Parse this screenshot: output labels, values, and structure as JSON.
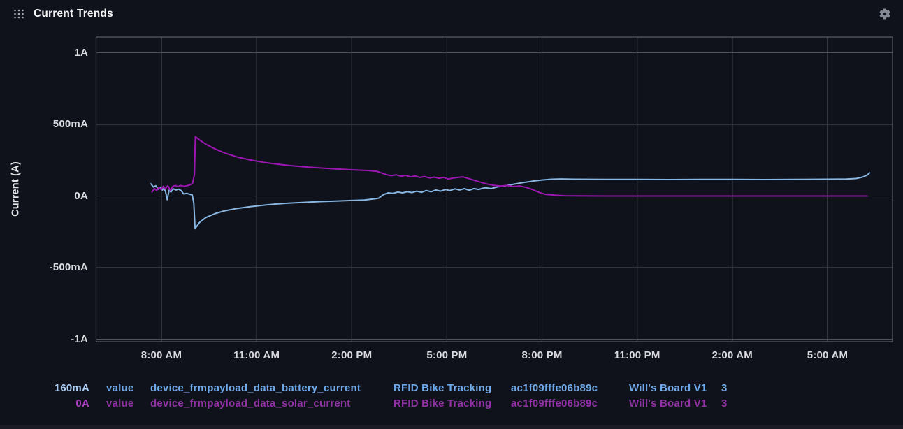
{
  "header": {
    "title": "Current Trends"
  },
  "icons": {
    "header_left": "drag-handle-icon",
    "header_right": "gear-icon"
  },
  "colors": {
    "background": "#10121b",
    "grid": "#50535c",
    "frame": "#5c5f68",
    "tick_text": "#d9dbe0",
    "blue_series": "#88b7e3",
    "magenta_series": "#9c17b2",
    "legend_blue": "#6fa9ea",
    "legend_blue_value": "#abcdf4",
    "legend_magenta": "#9031a4",
    "legend_magenta_value": "#aa3fc0"
  },
  "chart_data": {
    "type": "line",
    "title": "Current Trends",
    "xlabel": "",
    "ylabel": "Current (A)",
    "x_unit": "hours_from_midnight_first_day",
    "xlim": [
      5.94,
      31.05
    ],
    "ylim": [
      -1017,
      1110
    ],
    "grid": true,
    "x_ticks": [
      {
        "label": "8:00 AM",
        "t": 8
      },
      {
        "label": "11:00 AM",
        "t": 11
      },
      {
        "label": "2:00 PM",
        "t": 14
      },
      {
        "label": "5:00 PM",
        "t": 17
      },
      {
        "label": "8:00 PM",
        "t": 20
      },
      {
        "label": "11:00 PM",
        "t": 23
      },
      {
        "label": "2:00 AM",
        "t": 26
      },
      {
        "label": "5:00 AM",
        "t": 29
      }
    ],
    "y_ticks": [
      {
        "label": "1A",
        "v": 1000
      },
      {
        "label": "500mA",
        "v": 500
      },
      {
        "label": "0A",
        "v": 0
      },
      {
        "label": "-500mA",
        "v": -500
      },
      {
        "label": "-1A",
        "v": -1000
      }
    ],
    "series": [
      {
        "name": "device_frmpayload_data_battery_current",
        "color": "#88b7e3",
        "points": [
          [
            7.67,
            85
          ],
          [
            7.75,
            62
          ],
          [
            7.82,
            72
          ],
          [
            7.9,
            48
          ],
          [
            7.97,
            60
          ],
          [
            8.03,
            42
          ],
          [
            8.08,
            55
          ],
          [
            8.13,
            30
          ],
          [
            8.18,
            -25
          ],
          [
            8.24,
            40
          ],
          [
            8.3,
            28
          ],
          [
            8.38,
            50
          ],
          [
            8.46,
            42
          ],
          [
            8.54,
            48
          ],
          [
            8.62,
            38
          ],
          [
            8.7,
            15
          ],
          [
            8.8,
            18
          ],
          [
            8.9,
            12
          ],
          [
            8.97,
            8
          ],
          [
            9.02,
            -50
          ],
          [
            9.06,
            -228
          ],
          [
            9.2,
            -185
          ],
          [
            9.4,
            -150
          ],
          [
            9.7,
            -122
          ],
          [
            10.0,
            -103
          ],
          [
            10.4,
            -86
          ],
          [
            10.8,
            -74
          ],
          [
            11.2,
            -64
          ],
          [
            11.6,
            -56
          ],
          [
            12.0,
            -50
          ],
          [
            12.5,
            -44
          ],
          [
            13.0,
            -39
          ],
          [
            13.5,
            -35
          ],
          [
            14.0,
            -31
          ],
          [
            14.4,
            -28
          ],
          [
            14.7,
            -20
          ],
          [
            14.85,
            -15
          ],
          [
            15.0,
            10
          ],
          [
            15.15,
            22
          ],
          [
            15.3,
            18
          ],
          [
            15.45,
            28
          ],
          [
            15.6,
            22
          ],
          [
            15.75,
            30
          ],
          [
            15.9,
            24
          ],
          [
            16.05,
            34
          ],
          [
            16.2,
            26
          ],
          [
            16.35,
            38
          ],
          [
            16.5,
            30
          ],
          [
            16.65,
            42
          ],
          [
            16.8,
            34
          ],
          [
            16.95,
            45
          ],
          [
            17.1,
            38
          ],
          [
            17.25,
            50
          ],
          [
            17.4,
            42
          ],
          [
            17.55,
            52
          ],
          [
            17.7,
            40
          ],
          [
            17.85,
            52
          ],
          [
            18.0,
            46
          ],
          [
            18.2,
            58
          ],
          [
            18.4,
            52
          ],
          [
            18.6,
            64
          ],
          [
            18.8,
            70
          ],
          [
            19.0,
            78
          ],
          [
            19.2,
            86
          ],
          [
            19.4,
            94
          ],
          [
            19.6,
            100
          ],
          [
            19.8,
            107
          ],
          [
            20.0,
            112
          ],
          [
            20.3,
            117
          ],
          [
            20.6,
            119
          ],
          [
            21.0,
            117
          ],
          [
            22,
            116
          ],
          [
            23,
            116
          ],
          [
            24,
            115
          ],
          [
            25,
            116
          ],
          [
            26,
            116
          ],
          [
            27,
            115
          ],
          [
            28,
            116
          ],
          [
            29,
            117
          ],
          [
            29.6,
            118
          ],
          [
            29.9,
            122
          ],
          [
            30.1,
            132
          ],
          [
            30.25,
            146
          ],
          [
            30.33,
            162
          ]
        ]
      },
      {
        "name": "device_frmpayload_data_solar_current",
        "color": "#9c17b2",
        "points": [
          [
            7.7,
            28
          ],
          [
            7.78,
            52
          ],
          [
            7.85,
            38
          ],
          [
            7.92,
            60
          ],
          [
            7.99,
            45
          ],
          [
            8.06,
            68
          ],
          [
            8.12,
            50
          ],
          [
            8.2,
            72
          ],
          [
            8.28,
            38
          ],
          [
            8.36,
            68
          ],
          [
            8.44,
            74
          ],
          [
            8.52,
            66
          ],
          [
            8.6,
            74
          ],
          [
            8.7,
            68
          ],
          [
            8.8,
            72
          ],
          [
            8.9,
            78
          ],
          [
            8.98,
            88
          ],
          [
            9.04,
            150
          ],
          [
            9.07,
            415
          ],
          [
            9.2,
            392
          ],
          [
            9.4,
            362
          ],
          [
            9.7,
            328
          ],
          [
            10.0,
            300
          ],
          [
            10.4,
            272
          ],
          [
            10.8,
            252
          ],
          [
            11.2,
            236
          ],
          [
            11.6,
            224
          ],
          [
            12.0,
            214
          ],
          [
            12.5,
            204
          ],
          [
            13.0,
            196
          ],
          [
            13.5,
            189
          ],
          [
            14.0,
            183
          ],
          [
            14.5,
            178
          ],
          [
            14.8,
            172
          ],
          [
            14.95,
            160
          ],
          [
            15.1,
            148
          ],
          [
            15.25,
            142
          ],
          [
            15.4,
            148
          ],
          [
            15.55,
            138
          ],
          [
            15.7,
            144
          ],
          [
            15.85,
            134
          ],
          [
            16.0,
            140
          ],
          [
            16.15,
            130
          ],
          [
            16.3,
            136
          ],
          [
            16.45,
            126
          ],
          [
            16.6,
            132
          ],
          [
            16.75,
            124
          ],
          [
            16.9,
            130
          ],
          [
            17.05,
            118
          ],
          [
            17.2,
            126
          ],
          [
            17.35,
            130
          ],
          [
            17.5,
            134
          ],
          [
            17.65,
            124
          ],
          [
            17.8,
            114
          ],
          [
            17.95,
            104
          ],
          [
            18.1,
            94
          ],
          [
            18.3,
            82
          ],
          [
            18.5,
            74
          ],
          [
            18.7,
            70
          ],
          [
            18.9,
            74
          ],
          [
            19.1,
            66
          ],
          [
            19.3,
            70
          ],
          [
            19.5,
            60
          ],
          [
            19.7,
            45
          ],
          [
            19.9,
            26
          ],
          [
            20.1,
            12
          ],
          [
            20.4,
            6
          ],
          [
            20.7,
            2
          ],
          [
            21.0,
            1
          ],
          [
            22,
            0
          ],
          [
            24,
            0
          ],
          [
            26,
            0
          ],
          [
            28,
            0
          ],
          [
            30.25,
            0
          ]
        ]
      }
    ]
  },
  "legend": {
    "rows": [
      {
        "value": "160mA",
        "field": "value",
        "key": "device_frmpayload_data_battery_current",
        "group": "RFID Bike Tracking",
        "device_id": "ac1f09fffe06b89c",
        "board": "Will's Board V1",
        "count": "3",
        "color": "#6fa9ea",
        "value_color": "#abcdf4"
      },
      {
        "value": "0A",
        "field": "value",
        "key": "device_frmpayload_data_solar_current",
        "group": "RFID Bike Tracking",
        "device_id": "ac1f09fffe06b89c",
        "board": "Will's Board V1",
        "count": "3",
        "color": "#9031a4",
        "value_color": "#aa3fc0"
      }
    ]
  }
}
